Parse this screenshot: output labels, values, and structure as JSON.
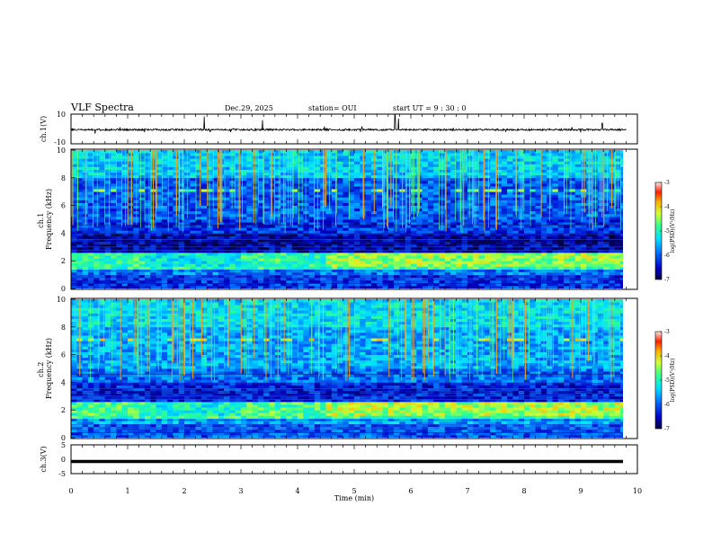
{
  "chart_data": [
    {
      "type": "line",
      "name": "channel-1-waveform",
      "title": "VLF Spectra",
      "header": {
        "date": "Dec.29, 2025",
        "station": "station= OUI",
        "start_ut": "start  UT =   9 : 30 : 0"
      },
      "ylabel": "ch.1(V)",
      "ylim": [
        -10,
        10
      ],
      "y_tick_labels": [
        "10",
        "-10"
      ],
      "baseline": -0.5,
      "noise_amplitude": 0.6,
      "spikes": [
        {
          "x": 2.35,
          "y": 8.5
        },
        {
          "x": 3.38,
          "y": 6
        },
        {
          "x": 5.72,
          "y": 10
        },
        {
          "x": 5.78,
          "y": 7
        },
        {
          "x": 9.38,
          "y": 4
        }
      ]
    },
    {
      "type": "heatmap",
      "name": "channel-1-spectrogram",
      "ylabel": "ch.1\nFrequency (kHz)",
      "ylim": [
        0,
        10
      ],
      "xlim": [
        0,
        9.8
      ],
      "y_tick_labels": [
        "0",
        "2",
        "4",
        "6",
        "8",
        "10"
      ],
      "colorbar": {
        "label": "log(PSD)(V²/Hz)",
        "range": [
          -7,
          -3
        ],
        "tick_labels": [
          "-3",
          "-4",
          "-5",
          "-6",
          "-7"
        ]
      },
      "background_log_psd": {
        "0-1kHz": -6.2,
        "1-1.5kHz": -5.8,
        "1.5-2.6kHz": -4.9,
        "2.6-4kHz": -6.6,
        "4-5kHz": -6.2,
        "5-8kHz": -6.0,
        "8-10kHz": -5.4
      },
      "sferic_count": 170
    },
    {
      "type": "heatmap",
      "name": "channel-2-spectrogram",
      "ylabel": "ch.2\nFrequency (kHz)",
      "ylim": [
        0,
        10
      ],
      "xlim": [
        0,
        9.8
      ],
      "y_tick_labels": [
        "0",
        "2",
        "4",
        "6",
        "8",
        "10"
      ],
      "colorbar": {
        "label": "log(PSD)(V²/Hz)",
        "range": [
          -7,
          -3
        ],
        "tick_labels": [
          "-3",
          "-4",
          "-5",
          "-6",
          "-7"
        ]
      },
      "background_log_psd": {
        "0-1kHz": -6.0,
        "1-1.5kHz": -5.6,
        "1.5-2.6kHz": -4.8,
        "2.6-4kHz": -6.3,
        "4-5kHz": -5.9,
        "5-8kHz": -5.6,
        "8-10kHz": -5.3
      },
      "sferic_count": 150
    },
    {
      "type": "line",
      "name": "channel-3-waveform",
      "ylabel": "ch.3(V)",
      "ylim": [
        -5,
        5
      ],
      "y_tick_labels": [
        "5",
        "0",
        "-5"
      ],
      "constant_value": -0.8,
      "xlabel": "Time (min)",
      "xlim": [
        0,
        10
      ],
      "x_tick_labels": [
        "0",
        "1",
        "2",
        "3",
        "4",
        "5",
        "6",
        "7",
        "8",
        "9",
        "10"
      ]
    }
  ]
}
